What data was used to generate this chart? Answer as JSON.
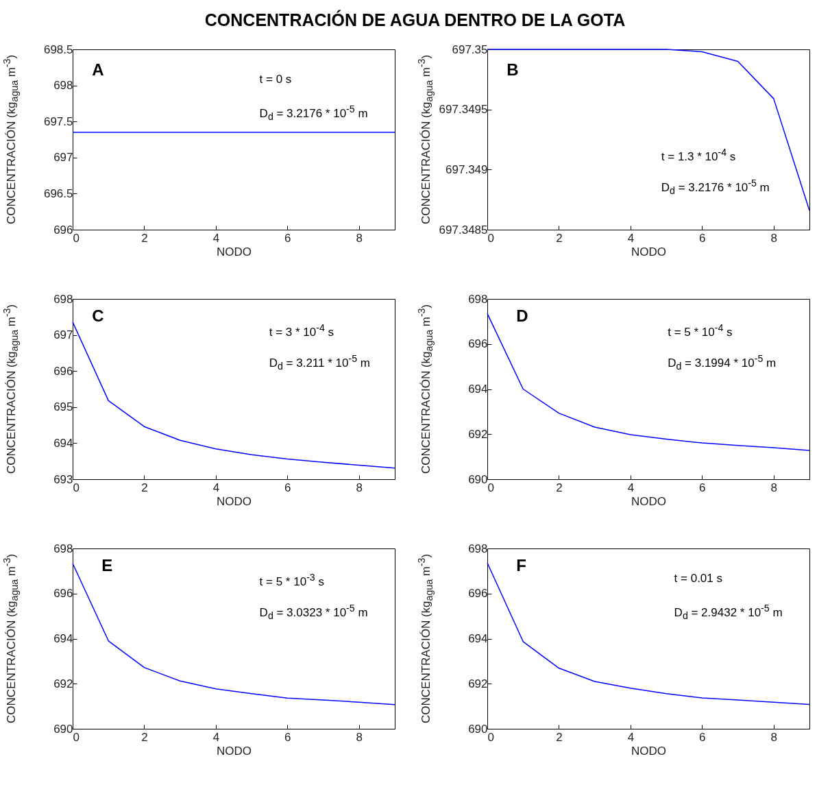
{
  "chart_data": [
    {
      "type": "line",
      "title": "CONCENTRACIÓN DE AGUA DENTRO DE LA GOTA",
      "xlabel": "NODO",
      "ylabel": "CONCENTRACIÓN (kg$_{agua}$ m$^{-3}$)",
      "annotations": [
        "A",
        "t = 0 s",
        "D$_{d}$ = 3.2176 * 10$^{-5}$ m"
      ],
      "x": [
        0,
        1,
        2,
        3,
        4,
        5,
        6,
        7,
        8,
        9
      ],
      "series": [
        {
          "color": "#0000ff",
          "values": [
            697.35,
            697.35,
            697.35,
            697.35,
            697.35,
            697.35,
            697.35,
            697.35,
            697.35,
            697.35
          ]
        }
      ],
      "xlim": [
        0,
        9
      ],
      "xticks": [
        0,
        2,
        4,
        6,
        8
      ],
      "ylim": [
        696,
        698.5
      ],
      "yticks": [
        696,
        696.5,
        697,
        697.5,
        698,
        698.5
      ]
    },
    {
      "type": "line",
      "xlabel": "NODO",
      "ylabel": "CONCENTRACIÓN (kg$_{agua}$ m$^{-3}$)",
      "annotations": [
        "B",
        "t = 1.3 * 10$^{-4}$ s",
        "D$_{d}$ = 3.2176 * 10$^{-5}$ m"
      ],
      "x": [
        0,
        1,
        2,
        3,
        4,
        5,
        6,
        7,
        8,
        9
      ],
      "series": [
        {
          "color": "#0000ff",
          "values": [
            697.35,
            697.35,
            697.35,
            697.35,
            697.35,
            697.35,
            697.34998,
            697.3499,
            697.34959,
            697.34866
          ]
        }
      ],
      "xlim": [
        0,
        9
      ],
      "xticks": [
        0,
        2,
        4,
        6,
        8
      ],
      "ylim": [
        697.3485,
        697.35
      ],
      "yticks": [
        697.3485,
        697.349,
        697.3495,
        697.35
      ]
    },
    {
      "type": "line",
      "xlabel": "NODO",
      "ylabel": "CONCENTRACIÓN (kg$_{agua}$ m$^{-3}$)",
      "annotations": [
        "C",
        "t = 3 * 10$^{-4}$ s",
        "D$_{d}$ = 3.211 * 10$^{-5}$ m"
      ],
      "x": [
        0,
        1,
        2,
        3,
        4,
        5,
        6,
        7,
        8,
        9
      ],
      "series": [
        {
          "color": "#0000ff",
          "values": [
            697.36,
            695.18,
            694.46,
            694.08,
            693.84,
            693.68,
            693.56,
            693.47,
            693.39,
            693.31
          ]
        }
      ],
      "xlim": [
        0,
        9
      ],
      "xticks": [
        0,
        2,
        4,
        6,
        8
      ],
      "ylim": [
        693,
        698
      ],
      "yticks": [
        693,
        694,
        695,
        696,
        697,
        698
      ]
    },
    {
      "type": "line",
      "xlabel": "NODO",
      "ylabel": "CONCENTRACIÓN (kg$_{agua}$ m$^{-3}$)",
      "annotations": [
        "D",
        "t = 5 * 10$^{-4}$ s",
        "D$_{d}$ = 3.1994 * 10$^{-5}$ m"
      ],
      "x": [
        0,
        1,
        2,
        3,
        4,
        5,
        6,
        7,
        8,
        9
      ],
      "series": [
        {
          "color": "#0000ff",
          "values": [
            697.35,
            694.0,
            692.93,
            692.31,
            691.98,
            691.78,
            691.61,
            691.5,
            691.4,
            691.28
          ]
        }
      ],
      "xlim": [
        0,
        9
      ],
      "xticks": [
        0,
        2,
        4,
        6,
        8
      ],
      "ylim": [
        690,
        698
      ],
      "yticks": [
        690,
        692,
        694,
        696,
        698
      ]
    },
    {
      "type": "line",
      "xlabel": "NODO",
      "ylabel": "CONCENTRACIÓN (kg$_{agua}$ m$^{-3}$)",
      "annotations": [
        "E",
        "t = 5 * 10$^{-3}$ s",
        "D$_{d}$ = 3.0323 * 10$^{-5}$ m"
      ],
      "x": [
        0,
        1,
        2,
        3,
        4,
        5,
        6,
        7,
        8,
        9
      ],
      "series": [
        {
          "color": "#0000ff",
          "values": [
            697.34,
            693.9,
            692.72,
            692.12,
            691.77,
            691.56,
            691.36,
            691.28,
            691.18,
            691.07
          ]
        }
      ],
      "xlim": [
        0,
        9
      ],
      "xticks": [
        0,
        2,
        4,
        6,
        8
      ],
      "ylim": [
        690,
        698
      ],
      "yticks": [
        690,
        692,
        694,
        696,
        698
      ]
    },
    {
      "type": "line",
      "xlabel": "NODO",
      "ylabel": "CONCENTRACIÓN (kg$_{agua}$ m$^{-3}$)",
      "annotations": [
        "F",
        "t = 0.01 s",
        "D$_{d}$ = 2.9432 * 10$^{-5}$ m"
      ],
      "x": [
        0,
        1,
        2,
        3,
        4,
        5,
        6,
        7,
        8,
        9
      ],
      "series": [
        {
          "color": "#0000ff",
          "values": [
            697.36,
            693.87,
            692.69,
            692.1,
            691.8,
            691.56,
            691.37,
            691.28,
            691.18,
            691.08
          ]
        }
      ],
      "xlim": [
        0,
        9
      ],
      "xticks": [
        0,
        2,
        4,
        6,
        8
      ],
      "ylim": [
        690,
        698
      ],
      "yticks": [
        690,
        692,
        694,
        696,
        698
      ]
    }
  ]
}
